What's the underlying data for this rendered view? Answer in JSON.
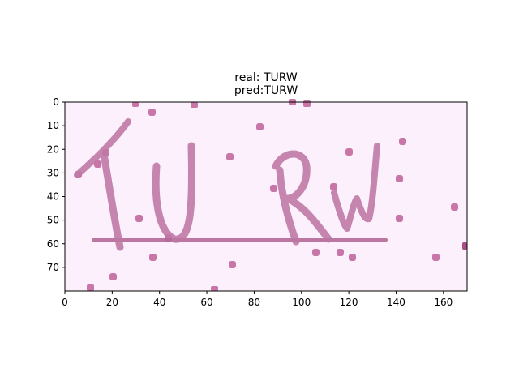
{
  "figure": {
    "title_line1": "real: TURW",
    "title_line2": "pred:TURW"
  },
  "image": {
    "description_colors": {
      "background": "#fbf0fb",
      "stroke": "#c07aa6",
      "dark_noise": "#9a2f73"
    },
    "text_in_image": "TURW"
  },
  "chart_data": {
    "type": "image",
    "xlim": [
      0,
      170
    ],
    "ylim": [
      80,
      0
    ],
    "x_ticks": [
      "0",
      "20",
      "40",
      "60",
      "80",
      "100",
      "120",
      "140",
      "160"
    ],
    "y_ticks": [
      "0",
      "10",
      "20",
      "30",
      "40",
      "50",
      "60",
      "70"
    ],
    "y_inverted": true
  }
}
